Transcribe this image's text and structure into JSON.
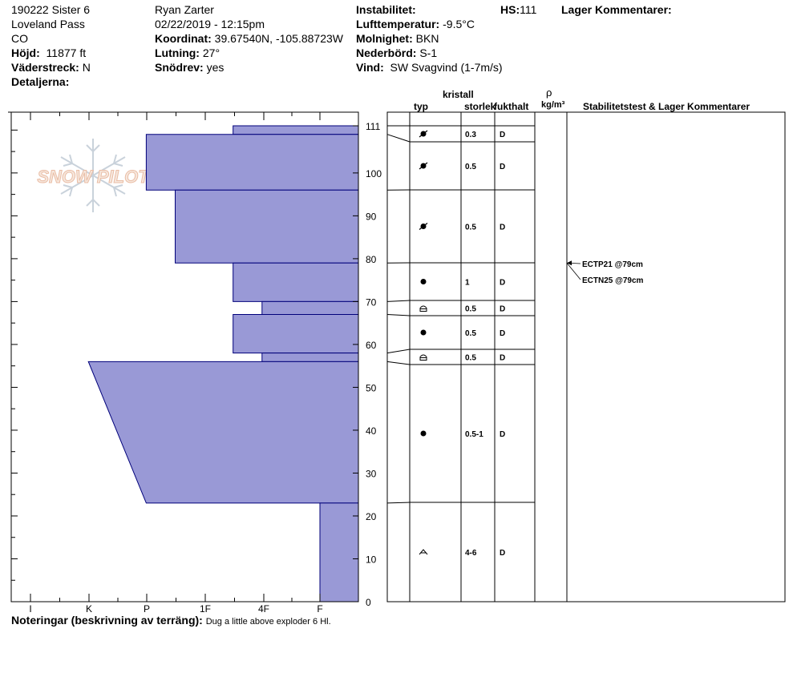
{
  "header": {
    "col1": {
      "site": "190222 Sister 6",
      "location": "Loveland Pass",
      "state": "CO",
      "elevation_label": "Höjd:",
      "elevation_value": "11877 ft",
      "aspect_label": "Väderstreck:",
      "aspect_value": "N",
      "details_label": "Detaljerna:"
    },
    "col2": {
      "observer": "Ryan Zarter",
      "datetime": "02/22/2019 - 12:15pm",
      "coord_label": "Koordinat:",
      "coord_value": "39.67540N, -105.88723W",
      "slope_label": "Lutning:",
      "slope_value": "27°",
      "drift_label": "Snödrev:",
      "drift_value": "yes"
    },
    "col3": {
      "instability_label": "Instabilitet:",
      "air_temp_label": "Lufttemperatur:",
      "air_temp_value": "-9.5°C",
      "sky_label": "Molnighet:",
      "sky_value": "BKN",
      "precip_label": "Nederbörd:",
      "precip_value": "S-1",
      "wind_label": "Vind:",
      "wind_value": "SW Svagvind (1-7m/s)"
    },
    "hs_label": "HS:",
    "hs_value": "111",
    "layer_comments_label": "Lager Kommentarer:"
  },
  "watermark": "SNOW PILOT",
  "table_headers": {
    "crystal": "kristall",
    "type": "typ",
    "size": "storlek",
    "moisture": "fukthalt",
    "rho": "ρ",
    "density_unit": "kg/m³",
    "stability": "Stabilitetstest & Lager Kommentarer"
  },
  "notes_label": "Noteringar (beskrivning av terräng):",
  "notes_value": "Dug a little above exploder 6 Hl.",
  "chart_data": {
    "type": "hardness_profile",
    "y_axis": {
      "min": 0,
      "max": 111,
      "ticks": [
        0,
        10,
        20,
        30,
        40,
        50,
        60,
        70,
        80,
        90,
        100,
        111
      ]
    },
    "x_axis": {
      "ticks": [
        "I",
        "K",
        "P",
        "1F",
        "4F",
        "F"
      ]
    },
    "layers": [
      {
        "top": 111,
        "bottom": 109,
        "hardness_top": 3.5,
        "hardness_bottom": 3.5,
        "grain_size": "0.3",
        "moisture": "D",
        "grain": "pp-dec"
      },
      {
        "top": 109,
        "bottom": 96,
        "hardness_top": 2.0,
        "hardness_bottom": 2.0,
        "grain_size": "0.5",
        "moisture": "D",
        "grain": "pp-dec"
      },
      {
        "top": 96,
        "bottom": 79,
        "hardness_top": 2.5,
        "hardness_bottom": 2.5,
        "grain_size": "0.5",
        "moisture": "D",
        "grain": "pp-dec"
      },
      {
        "top": 79,
        "bottom": 70,
        "hardness_top": 3.5,
        "hardness_bottom": 3.5,
        "grain_size": "1",
        "moisture": "D",
        "grain": "rg"
      },
      {
        "top": 70,
        "bottom": 67,
        "hardness_top": 4.0,
        "hardness_bottom": 4.0,
        "grain_size": "0.5",
        "moisture": "D",
        "grain": "fc"
      },
      {
        "top": 67,
        "bottom": 58,
        "hardness_top": 3.5,
        "hardness_bottom": 3.5,
        "grain_size": "0.5",
        "moisture": "D",
        "grain": "rg"
      },
      {
        "top": 58,
        "bottom": 56,
        "hardness_top": 4.0,
        "hardness_bottom": 4.0,
        "grain_size": "0.5",
        "moisture": "D",
        "grain": "fc"
      },
      {
        "top": 56,
        "bottom": 23,
        "hardness_top": 1.0,
        "hardness_bottom": 2.0,
        "grain_size": "0.5-1",
        "moisture": "D",
        "grain": "rg"
      },
      {
        "top": 23,
        "bottom": 0,
        "hardness_top": 5.0,
        "hardness_bottom": 5.0,
        "grain_size": "4-6",
        "moisture": "D",
        "grain": "dh"
      }
    ],
    "stability_tests": [
      {
        "label": "ECTP21 @79cm",
        "depth": 79
      },
      {
        "label": "ECTN25 @79cm",
        "depth": 79
      }
    ],
    "colors": {
      "fill": "#9999d6",
      "stroke": "#00007a"
    }
  }
}
